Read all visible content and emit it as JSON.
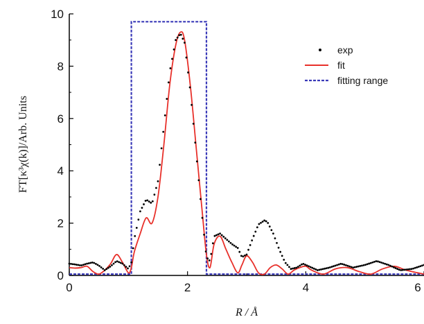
{
  "chart_data": {
    "type": "line",
    "title": "",
    "xlabel": "R / Å",
    "ylabel": "FT[κ³χ(k)]/Arb. Units",
    "xlim": [
      0,
      6
    ],
    "ylim": [
      0,
      10
    ],
    "xticks": [
      "0",
      "2",
      "4",
      "6"
    ],
    "yticks": [
      "0",
      "2",
      "4",
      "6",
      "8",
      "10"
    ],
    "grid": false,
    "legend_position": "top-right",
    "series": [
      {
        "name": "exp",
        "style": "dotted",
        "color": "#000000",
        "x": [
          0.0,
          0.1,
          0.2,
          0.3,
          0.4,
          0.5,
          0.6,
          0.7,
          0.8,
          0.9,
          1.0,
          1.05,
          1.1,
          1.2,
          1.3,
          1.4,
          1.5,
          1.6,
          1.7,
          1.8,
          1.88,
          1.95,
          2.05,
          2.15,
          2.25,
          2.32,
          2.38,
          2.45,
          2.55,
          2.65,
          2.75,
          2.85,
          2.92,
          3.0,
          3.1,
          3.2,
          3.3,
          3.35,
          3.45,
          3.55,
          3.65,
          3.75,
          3.85,
          3.95,
          4.05,
          4.2,
          4.4,
          4.6,
          4.8,
          5.0,
          5.2,
          5.4,
          5.6,
          5.8,
          6.0
        ],
        "y": [
          0.45,
          0.42,
          0.38,
          0.45,
          0.5,
          0.38,
          0.2,
          0.35,
          0.55,
          0.45,
          0.25,
          0.5,
          1.4,
          2.45,
          2.9,
          2.75,
          3.6,
          5.7,
          7.8,
          9.0,
          9.25,
          8.9,
          7.0,
          4.6,
          2.2,
          0.7,
          0.55,
          1.5,
          1.6,
          1.4,
          1.2,
          1.05,
          0.7,
          0.8,
          1.4,
          1.95,
          2.1,
          2.05,
          1.6,
          1.0,
          0.5,
          0.25,
          0.3,
          0.45,
          0.35,
          0.2,
          0.3,
          0.45,
          0.3,
          0.4,
          0.55,
          0.4,
          0.2,
          0.25,
          0.4
        ]
      },
      {
        "name": "fit",
        "style": "solid",
        "color": "#e8302a",
        "x": [
          0.0,
          0.1,
          0.2,
          0.3,
          0.4,
          0.5,
          0.6,
          0.7,
          0.8,
          0.9,
          1.0,
          1.05,
          1.1,
          1.2,
          1.3,
          1.4,
          1.5,
          1.6,
          1.7,
          1.8,
          1.88,
          1.95,
          2.05,
          2.15,
          2.25,
          2.32,
          2.38,
          2.45,
          2.55,
          2.65,
          2.75,
          2.85,
          2.92,
          3.0,
          3.1,
          3.2,
          3.3,
          3.4,
          3.5,
          3.6,
          3.7,
          3.8,
          3.9,
          4.0,
          4.1,
          4.3,
          4.5,
          4.7,
          4.9,
          5.1,
          5.3,
          5.5,
          5.7,
          6.0
        ],
        "y": [
          0.3,
          0.28,
          0.3,
          0.35,
          0.15,
          0.05,
          0.2,
          0.45,
          0.8,
          0.5,
          0.1,
          0.3,
          0.9,
          1.6,
          2.2,
          2.0,
          3.0,
          5.0,
          7.3,
          8.8,
          9.3,
          9.0,
          7.2,
          4.8,
          2.4,
          0.8,
          0.3,
          1.2,
          1.5,
          1.0,
          0.5,
          0.1,
          0.4,
          0.75,
          0.5,
          0.1,
          0.05,
          0.3,
          0.4,
          0.25,
          0.05,
          0.2,
          0.3,
          0.35,
          0.2,
          0.05,
          0.25,
          0.3,
          0.15,
          0.05,
          0.25,
          0.35,
          0.2,
          0.05
        ]
      },
      {
        "name": "fitting range",
        "style": "dashed",
        "color": "#3a3ab8",
        "x": [
          0.0,
          1.05,
          1.05,
          2.32,
          2.32,
          6.0
        ],
        "y": [
          0.05,
          0.05,
          9.7,
          9.7,
          0.05,
          0.05
        ]
      }
    ]
  }
}
